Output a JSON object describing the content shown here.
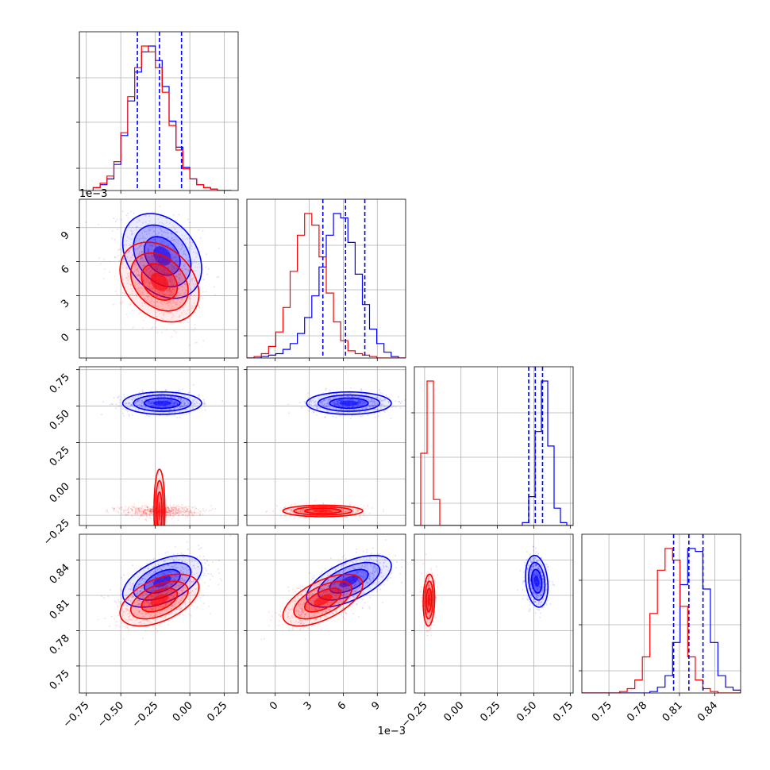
{
  "chart_data": {
    "type": "corner",
    "grid": true,
    "colors": {
      "A": "#0000ff",
      "B": "#ff0000"
    },
    "parameters": [
      {
        "index": 0,
        "range": [
          -0.8,
          0.35
        ],
        "ticks": [
          -0.75,
          -0.5,
          -0.25,
          0.0,
          0.25
        ],
        "tick_labels": [
          "−0.75",
          "−0.50",
          "−0.25",
          "0.00",
          "0.25"
        ],
        "sci_label": ""
      },
      {
        "index": 1,
        "range": [
          -0.0025,
          0.0115
        ],
        "ticks": [
          0,
          0.003,
          0.006,
          0.009
        ],
        "tick_labels": [
          "0",
          "3",
          "6",
          "9"
        ],
        "sci_label": "1e−3"
      },
      {
        "index": 2,
        "range": [
          -0.32,
          0.77
        ],
        "ticks": [
          -0.25,
          0.0,
          0.25,
          0.5,
          0.75
        ],
        "tick_labels": [
          "−0.25",
          "0.00",
          "0.25",
          "0.50",
          "0.75"
        ],
        "sci_label": ""
      },
      {
        "index": 3,
        "range": [
          0.727,
          0.862
        ],
        "ticks": [
          0.75,
          0.78,
          0.81,
          0.84
        ],
        "tick_labels": [
          "0.75",
          "0.78",
          "0.81",
          "0.84"
        ],
        "sci_label": ""
      }
    ],
    "quantile_lines": [
      [
        -0.38,
        -0.22,
        -0.06
      ],
      [
        0.0042,
        0.0062,
        0.0079
      ],
      [
        0.465,
        0.51,
        0.56
      ],
      [
        0.805,
        0.818,
        0.83
      ]
    ],
    "series": [
      {
        "key": "A",
        "mean": [
          -0.2,
          0.0065,
          0.52,
          0.822
        ],
        "std": [
          0.13,
          0.0017,
          0.035,
          0.01
        ],
        "corr": [
          [
            1,
            -0.3,
            0,
            0.5
          ],
          [
            -0.3,
            1,
            0,
            0.6
          ],
          [
            0,
            0,
            1,
            -0.2
          ],
          [
            0.5,
            0.6,
            -0.2,
            1
          ]
        ],
        "histograms": [
          {
            "edges": [
              -0.7,
              0.3
            ],
            "counts": [
              2,
              4,
              8,
              18,
              38,
              62,
              82,
              96,
              100,
              90,
              72,
              48,
              30,
              16,
              8,
              4,
              2,
              1,
              0,
              0
            ]
          },
          {
            "edges": [
              -0.0025,
              0.0115
            ],
            "counts": [
              0,
              0,
              1,
              2,
              3,
              6,
              10,
              17,
              28,
              43,
              63,
              85,
              100,
              97,
              80,
              58,
              37,
              20,
              10,
              4,
              1,
              0
            ]
          },
          {
            "edges": [
              -0.32,
              0.77
            ],
            "counts": [
              0,
              0,
              0,
              0,
              0,
              0,
              0,
              0,
              0,
              0,
              0,
              0,
              0,
              0,
              0,
              0,
              0,
              2,
              20,
              65,
              100,
              55,
              12,
              2,
              0
            ]
          },
          {
            "edges": [
              0.727,
              0.862
            ],
            "counts": [
              0,
              0,
              0,
              0,
              0,
              0,
              0,
              0,
              0,
              1,
              4,
              12,
              35,
              75,
              100,
              98,
              72,
              35,
              12,
              4,
              2
            ]
          }
        ]
      },
      {
        "key": "B",
        "mean": [
          -0.22,
          0.0042,
          -0.22,
          0.806
        ],
        "std": [
          0.13,
          0.0016,
          0.018,
          0.01
        ],
        "corr": [
          [
            1,
            -0.3,
            0,
            0.5
          ],
          [
            -0.3,
            1,
            0,
            0.6
          ],
          [
            0,
            0,
            1,
            0.1
          ],
          [
            0.5,
            0.6,
            0.1,
            1
          ]
        ],
        "histograms": [
          {
            "edges": [
              -0.7,
              0.3
            ],
            "counts": [
              2,
              5,
              10,
              20,
              40,
              65,
              85,
              100,
              96,
              85,
              68,
              45,
              28,
              15,
              8,
              4,
              2,
              1,
              0,
              0
            ]
          },
          {
            "edges": [
              -0.0025,
              0.0115
            ],
            "counts": [
              0,
              1,
              3,
              8,
              18,
              35,
              60,
              85,
              100,
              92,
              70,
              45,
              25,
              12,
              5,
              3,
              2,
              1,
              0,
              0,
              0,
              0
            ]
          },
          {
            "edges": [
              -0.32,
              0.77
            ],
            "counts": [
              0,
              50,
              100,
              18,
              0,
              0,
              0,
              0,
              0,
              0,
              0,
              0,
              0,
              0,
              0,
              0,
              0,
              0,
              0,
              0,
              0,
              0,
              0,
              0,
              0
            ]
          },
          {
            "edges": [
              0.727,
              0.862
            ],
            "counts": [
              0,
              0,
              0,
              0,
              0,
              1,
              3,
              9,
              25,
              55,
              85,
              100,
              92,
              60,
              25,
              9,
              3,
              1,
              0,
              0,
              0
            ]
          }
        ]
      }
    ]
  }
}
